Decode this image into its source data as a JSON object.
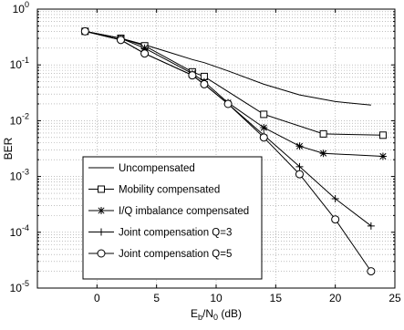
{
  "chart_data": {
    "type": "line",
    "xlabel": "E_b/N_0 (dB)",
    "xlabel_parts": {
      "main": "E",
      "sub1": "b",
      "slash": "/N",
      "sub2": "0",
      "unit": " (dB)"
    },
    "ylabel": "BER",
    "xlim": [
      -5,
      25
    ],
    "ylim": [
      1e-05,
      1
    ],
    "yscale": "log",
    "grid": true,
    "legend_position": "bottom-left",
    "x_ticks": [
      0,
      5,
      10,
      15,
      20,
      25
    ],
    "x_tick_labels": [
      "0",
      "5",
      "10",
      "15",
      "20",
      "25"
    ],
    "y_tick_labels": [
      {
        "base": "10",
        "exp": "0",
        "value": 1
      },
      {
        "base": "10",
        "exp": "-1",
        "value": 0.1
      },
      {
        "base": "10",
        "exp": "-2",
        "value": 0.01
      },
      {
        "base": "10",
        "exp": "-3",
        "value": 0.001
      },
      {
        "base": "10",
        "exp": "-4",
        "value": 0.0001
      },
      {
        "base": "10",
        "exp": "-5",
        "value": 1e-05
      }
    ],
    "series": [
      {
        "name": "Uncompensated",
        "marker": "none",
        "x": [
          -1,
          2,
          4,
          6,
          8,
          9,
          11,
          14,
          17,
          20,
          23
        ],
        "y": [
          0.4,
          0.3,
          0.23,
          0.17,
          0.125,
          0.11,
          0.078,
          0.045,
          0.029,
          0.022,
          0.019
        ]
      },
      {
        "name": "Mobility compensated",
        "marker": "square",
        "x": [
          -1,
          2,
          4,
          8,
          9,
          14,
          19,
          24
        ],
        "y": [
          0.4,
          0.3,
          0.22,
          0.075,
          0.062,
          0.013,
          0.0058,
          0.0055
        ]
      },
      {
        "name": "I/Q imbalance compensated",
        "marker": "asterisk",
        "x": [
          -1,
          2,
          4,
          8,
          9,
          11,
          14,
          17,
          19,
          24
        ],
        "y": [
          0.4,
          0.3,
          0.2,
          0.07,
          0.05,
          0.021,
          0.0075,
          0.0035,
          0.0026,
          0.0023
        ]
      },
      {
        "name": "Joint compensation Q=3",
        "marker": "plus",
        "x": [
          -1,
          2,
          4,
          8,
          9,
          11,
          14,
          17,
          20,
          23
        ],
        "y": [
          0.4,
          0.28,
          0.16,
          0.065,
          0.045,
          0.02,
          0.0055,
          0.0015,
          0.0004,
          0.00013
        ]
      },
      {
        "name": "Joint compensation Q=5",
        "marker": "circle",
        "x": [
          -1,
          2,
          4,
          8,
          9,
          11,
          14,
          17,
          20,
          23
        ],
        "y": [
          0.4,
          0.28,
          0.16,
          0.065,
          0.045,
          0.02,
          0.005,
          0.0011,
          0.00017,
          2e-05
        ]
      }
    ],
    "colors": {
      "line": "#000000",
      "grid": "#9a9a9a",
      "background": "#ffffff"
    }
  }
}
